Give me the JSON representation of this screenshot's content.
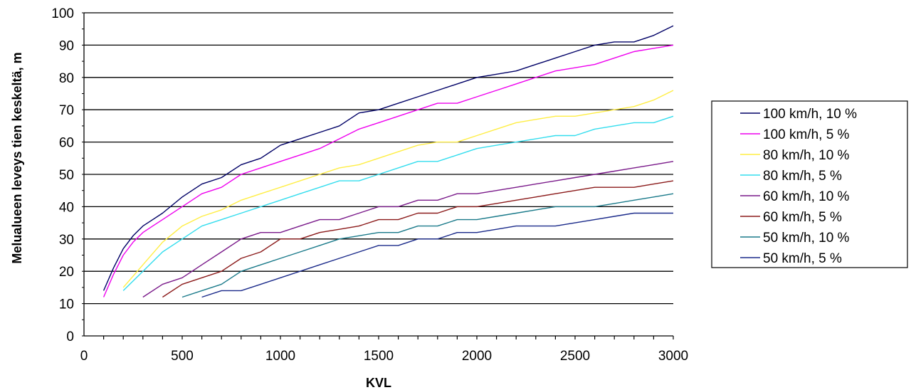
{
  "chart_data": {
    "type": "line",
    "title": "",
    "xlabel": "KVL",
    "ylabel": "Melualueen leveys tien keskeltä, m",
    "xlim": [
      0,
      3000
    ],
    "ylim": [
      0,
      100
    ],
    "x_ticks": [
      0,
      500,
      1000,
      1500,
      2000,
      2500,
      3000
    ],
    "y_ticks": [
      0,
      10,
      20,
      30,
      40,
      50,
      60,
      70,
      80,
      90,
      100
    ],
    "grid": "horizontal",
    "legend_position": "right",
    "series": [
      {
        "name": "100 km/h, 10 %",
        "color": "#000066",
        "x": [
          100,
          150,
          200,
          250,
          300,
          350,
          400,
          500,
          600,
          700,
          800,
          900,
          1000,
          1100,
          1200,
          1300,
          1400,
          1500,
          1600,
          1700,
          1800,
          1900,
          2000,
          2100,
          2200,
          2300,
          2400,
          2500,
          2600,
          2700,
          2800,
          2900,
          3000
        ],
        "y": [
          14,
          21,
          27,
          31,
          34,
          36,
          38,
          43,
          47,
          49,
          53,
          55,
          59,
          61,
          63,
          65,
          69,
          70,
          72,
          74,
          76,
          78,
          80,
          81,
          82,
          84,
          86,
          88,
          90,
          91,
          91,
          93,
          96
        ]
      },
      {
        "name": "100 km/h, 5 %",
        "color": "#ee00ee",
        "x": [
          100,
          150,
          200,
          250,
          300,
          350,
          400,
          500,
          600,
          700,
          800,
          900,
          1000,
          1100,
          1200,
          1300,
          1400,
          1500,
          1600,
          1700,
          1800,
          1900,
          2000,
          2100,
          2200,
          2300,
          2400,
          2500,
          2600,
          2700,
          2800,
          2900,
          3000
        ],
        "y": [
          12,
          19,
          25,
          29,
          32,
          34,
          36,
          40,
          44,
          46,
          50,
          52,
          54,
          56,
          58,
          61,
          64,
          66,
          68,
          70,
          72,
          72,
          74,
          76,
          78,
          80,
          82,
          83,
          84,
          86,
          88,
          89,
          90
        ]
      },
      {
        "name": "80 km/h, 10 %",
        "color": "#ffee44",
        "x": [
          200,
          300,
          400,
          500,
          600,
          700,
          800,
          900,
          1000,
          1100,
          1200,
          1300,
          1400,
          1500,
          1600,
          1700,
          1800,
          1900,
          2000,
          2100,
          2200,
          2300,
          2400,
          2500,
          2600,
          2700,
          2800,
          2900,
          3000
        ],
        "y": [
          15,
          22,
          29,
          34,
          37,
          39,
          42,
          44,
          46,
          48,
          50,
          52,
          53,
          55,
          57,
          59,
          60,
          60,
          62,
          64,
          66,
          67,
          68,
          68,
          69,
          70,
          71,
          73,
          76
        ]
      },
      {
        "name": "80 km/h, 5 %",
        "color": "#33ddee",
        "x": [
          200,
          300,
          400,
          500,
          600,
          700,
          800,
          900,
          1000,
          1100,
          1200,
          1300,
          1400,
          1500,
          1600,
          1700,
          1800,
          1900,
          2000,
          2100,
          2200,
          2300,
          2400,
          2500,
          2600,
          2700,
          2800,
          2900,
          3000
        ],
        "y": [
          14,
          20,
          26,
          30,
          34,
          36,
          38,
          40,
          42,
          44,
          46,
          48,
          48,
          50,
          52,
          54,
          54,
          56,
          58,
          59,
          60,
          61,
          62,
          62,
          64,
          65,
          66,
          66,
          68
        ]
      },
      {
        "name": "60 km/h, 10 %",
        "color": "#7a1a8a",
        "x": [
          300,
          400,
          500,
          600,
          700,
          800,
          900,
          1000,
          1100,
          1200,
          1300,
          1400,
          1500,
          1600,
          1700,
          1800,
          1900,
          2000,
          2100,
          2200,
          2300,
          2400,
          2500,
          2600,
          2700,
          2800,
          2900,
          3000
        ],
        "y": [
          12,
          16,
          18,
          22,
          26,
          30,
          32,
          32,
          34,
          36,
          36,
          38,
          40,
          40,
          42,
          42,
          44,
          44,
          45,
          46,
          47,
          48,
          49,
          50,
          51,
          52,
          53,
          54
        ]
      },
      {
        "name": "60 km/h, 5 %",
        "color": "#8b1a1a",
        "x": [
          400,
          500,
          600,
          700,
          800,
          900,
          1000,
          1100,
          1200,
          1300,
          1400,
          1500,
          1600,
          1700,
          1800,
          1900,
          2000,
          2100,
          2200,
          2300,
          2400,
          2500,
          2600,
          2700,
          2800,
          2900,
          3000
        ],
        "y": [
          12,
          16,
          18,
          20,
          24,
          26,
          30,
          30,
          32,
          33,
          34,
          36,
          36,
          38,
          38,
          40,
          40,
          41,
          42,
          43,
          44,
          45,
          46,
          46,
          46,
          47,
          48
        ]
      },
      {
        "name": "50 km/h, 10 %",
        "color": "#1a7a8a",
        "x": [
          500,
          600,
          700,
          800,
          900,
          1000,
          1100,
          1200,
          1300,
          1400,
          1500,
          1600,
          1700,
          1800,
          1900,
          2000,
          2100,
          2200,
          2300,
          2400,
          2500,
          2600,
          2700,
          2800,
          2900,
          3000
        ],
        "y": [
          12,
          14,
          16,
          20,
          22,
          24,
          26,
          28,
          30,
          31,
          32,
          32,
          34,
          34,
          36,
          36,
          37,
          38,
          39,
          40,
          40,
          40,
          41,
          42,
          43,
          44
        ]
      },
      {
        "name": "50 km/h, 5 %",
        "color": "#1a2a8a",
        "x": [
          600,
          700,
          800,
          900,
          1000,
          1100,
          1200,
          1300,
          1400,
          1500,
          1600,
          1700,
          1800,
          1900,
          2000,
          2100,
          2200,
          2300,
          2400,
          2500,
          2600,
          2700,
          2800,
          2900,
          3000
        ],
        "y": [
          12,
          14,
          14,
          16,
          18,
          20,
          22,
          24,
          26,
          28,
          28,
          30,
          30,
          32,
          32,
          33,
          34,
          34,
          34,
          35,
          36,
          37,
          38,
          38,
          38
        ]
      }
    ]
  }
}
